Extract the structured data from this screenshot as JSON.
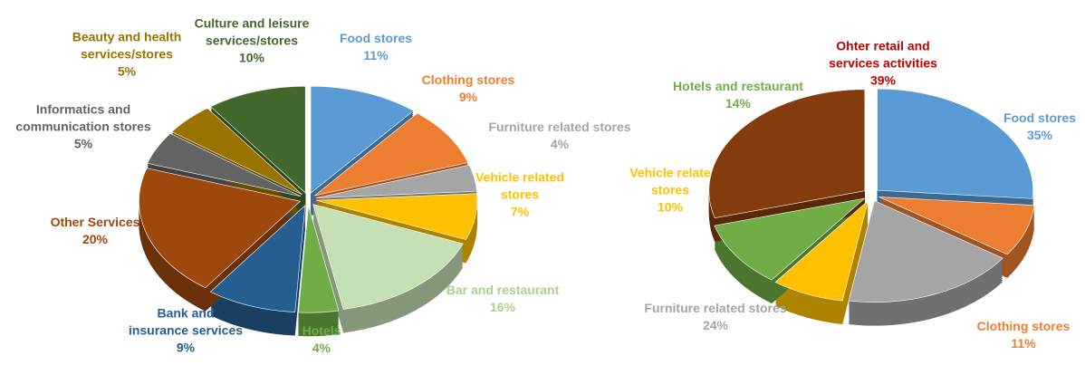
{
  "chart_data": [
    {
      "type": "pie",
      "categories": [
        "Food stores",
        "Clothing stores",
        "Furniture related stores",
        "Vehicle related stores",
        "Bar and restaurant",
        "Hotels",
        "Bank and insurance services",
        "Other Services",
        "Informatics and communication stores",
        "Beauty and health services/stores",
        "Culture and leisure services/stores"
      ],
      "values": [
        11,
        9,
        4,
        7,
        16,
        4,
        9,
        20,
        5,
        5,
        10
      ],
      "value_labels": [
        "11%",
        "9%",
        "4%",
        "7%",
        "16%",
        "4%",
        "9%",
        "20%",
        "5%",
        "5%",
        "10%"
      ],
      "colors": [
        "#5b9bd5",
        "#ed7d31",
        "#a5a5a5",
        "#ffc000",
        "#c5e0b4",
        "#70ad47",
        "#255e91",
        "#9e480e",
        "#636363",
        "#997300",
        "#43682b"
      ],
      "label_colors": [
        "#5b9bd5",
        "#ed7d31",
        "#a5a5a5",
        "#ffc000",
        "#a9d18e",
        "#70ad47",
        "#255e91",
        "#9e480e",
        "#636363",
        "#997300",
        "#43682b"
      ]
    },
    {
      "type": "pie",
      "categories": [
        "Food stores",
        "Clothing stores",
        "Furniture related stores",
        "Vehicle relate stores",
        "Hotels and restaurant",
        "Ohter retail and services activities"
      ],
      "values": [
        35,
        11,
        24,
        10,
        14,
        39
      ],
      "value_labels": [
        "35%",
        "11%",
        "24%",
        "10%",
        "14%",
        "39%"
      ],
      "colors": [
        "#5b9bd5",
        "#ed7d31",
        "#a5a5a5",
        "#ffc000",
        "#70ad47",
        "#843c0c"
      ],
      "label_colors": [
        "#5b9bd5",
        "#ed7d31",
        "#a5a5a5",
        "#ffc000",
        "#70ad47",
        "#c00000"
      ]
    }
  ]
}
